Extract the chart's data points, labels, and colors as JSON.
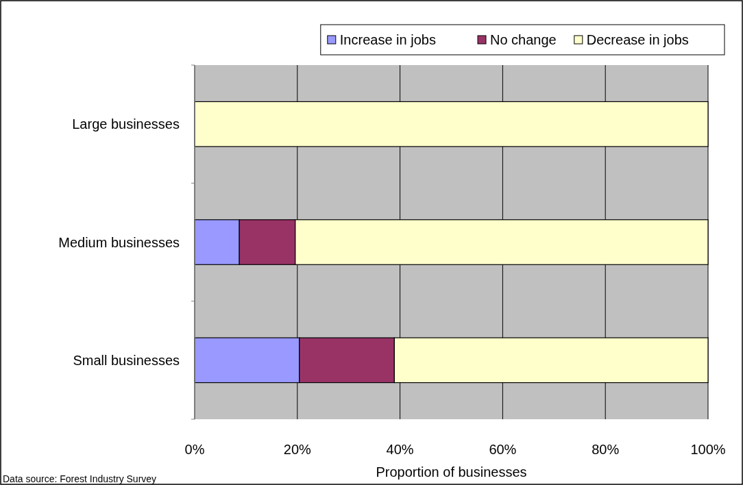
{
  "chart_data": {
    "type": "bar",
    "orientation": "horizontal",
    "stacked": true,
    "categories": [
      "Large businesses",
      "Medium businesses",
      "Small businesses"
    ],
    "series": [
      {
        "name": "Increase in jobs",
        "color": "#9999ff",
        "values": [
          0,
          8.7,
          20.4
        ]
      },
      {
        "name": "No change",
        "color": "#993366",
        "values": [
          0,
          10.9,
          18.5
        ]
      },
      {
        "name": "Decrease in jobs",
        "color": "#ffffcc",
        "values": [
          100,
          80.4,
          61.1
        ]
      }
    ],
    "xlim": [
      0,
      100
    ],
    "xticks": [
      {
        "value": 0,
        "label": "0%"
      },
      {
        "value": 20,
        "label": "20%"
      },
      {
        "value": 40,
        "label": "40%"
      },
      {
        "value": 60,
        "label": "60%"
      },
      {
        "value": 80,
        "label": "80%"
      },
      {
        "value": 100,
        "label": "100%"
      }
    ],
    "xlabel": "Proportion of businesses",
    "grid": "x",
    "legend": "top",
    "annotations": [
      "Data source: Forest Industry Survey"
    ]
  }
}
